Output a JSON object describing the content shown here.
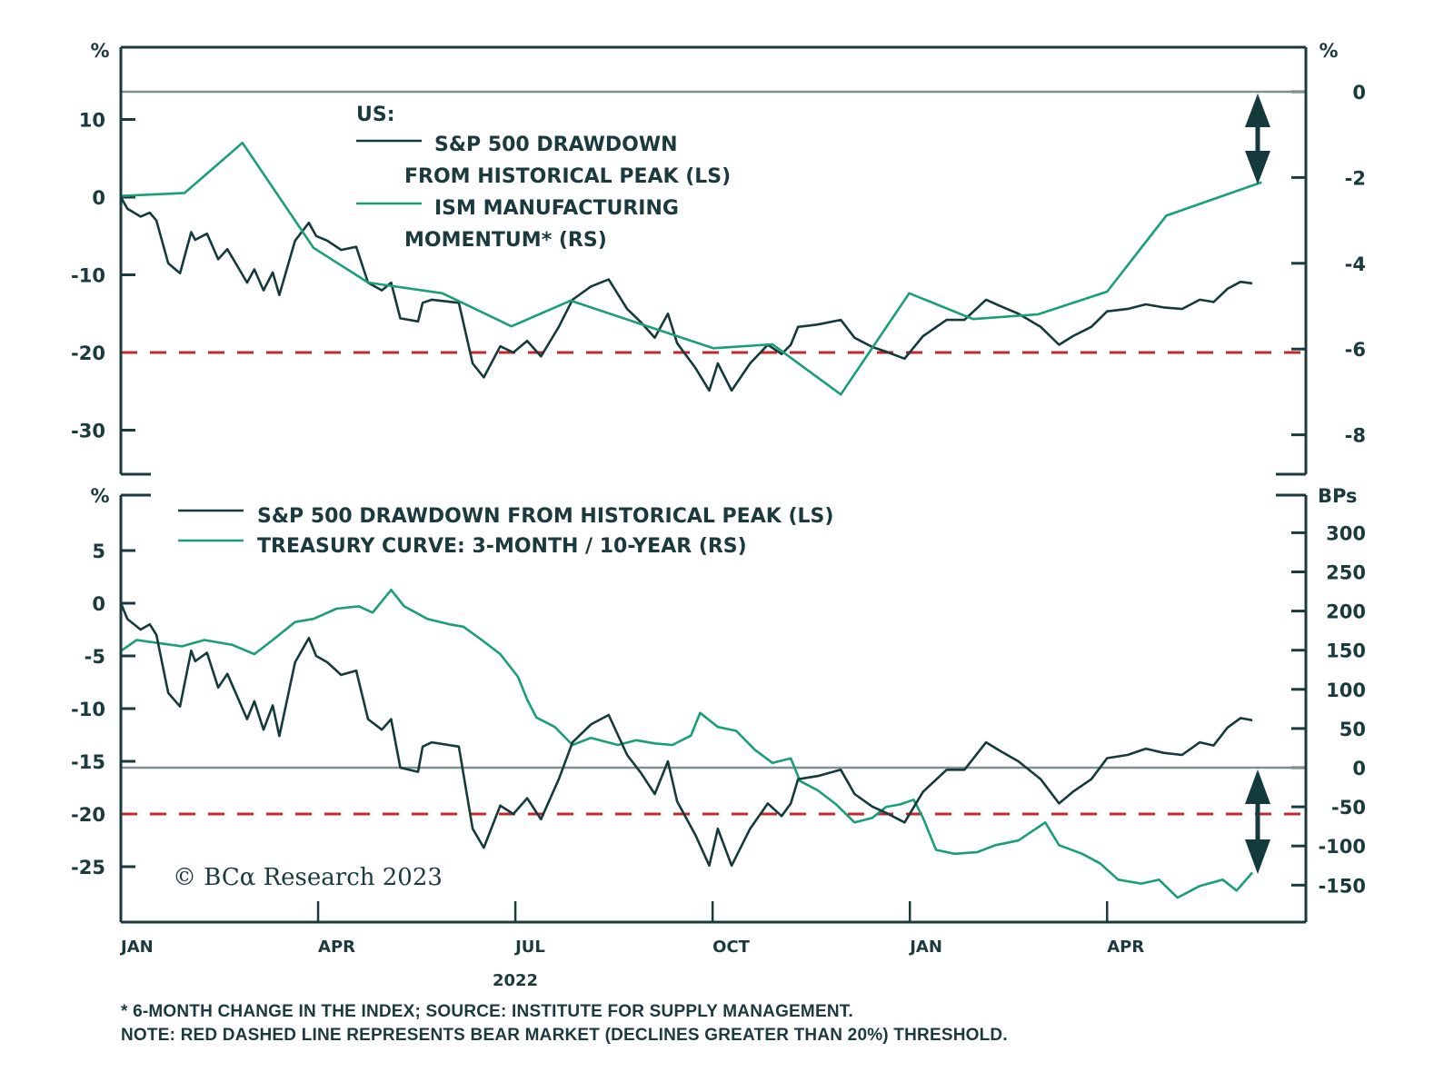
{
  "chart_data": [
    {
      "type": "line",
      "panel": "top",
      "legend_title": "US:",
      "left_unit": "%",
      "right_unit": "%",
      "left_axis": {
        "ylim": [
          -35,
          13
        ],
        "ticks": [
          10,
          0,
          -10,
          -20,
          -30
        ]
      },
      "right_axis": {
        "ylim": [
          -9.1,
          1.0
        ],
        "ticks": [
          0,
          -2,
          -4,
          -6,
          -8
        ]
      },
      "x_unit": "months since Jan 2022",
      "xlim": [
        0,
        18
      ],
      "reference_lines": [
        {
          "name": "bear-market-threshold",
          "axis": "left",
          "value": -20,
          "style": "dashed",
          "color": "#c0282d"
        },
        {
          "name": "zero-line",
          "axis": "right",
          "value": 0,
          "style": "solid",
          "color": "#7f8f8f"
        }
      ],
      "series": [
        {
          "name": "S&P 500 DRAWDOWN FROM HISTORICAL PEAK (LS)",
          "legend_lines": [
            "S&P 500 DRAWDOWN",
            "FROM HISTORICAL PEAK (LS)"
          ],
          "axis": "left",
          "color": "#153a3c",
          "x": [
            0,
            0.1,
            0.3,
            0.44,
            0.54,
            0.72,
            0.9,
            1.07,
            1.13,
            1.31,
            1.48,
            1.62,
            1.78,
            1.92,
            2.03,
            2.17,
            2.31,
            2.41,
            2.65,
            2.86,
            2.97,
            3.14,
            3.35,
            3.58,
            3.76,
            3.97,
            4.11,
            4.25,
            4.52,
            4.59,
            4.73,
            5.14,
            5.35,
            5.52,
            5.77,
            5.97,
            6.18,
            6.39,
            6.66,
            6.87,
            7.15,
            7.42,
            7.7,
            7.91,
            8.12,
            8.32,
            8.46,
            8.74,
            8.95,
            9.08,
            9.29,
            9.57,
            9.84,
            10.05,
            10.19,
            10.3,
            10.6,
            10.95,
            11.16,
            11.43,
            11.64,
            11.92,
            12.2,
            12.56,
            12.83,
            13.16,
            13.37,
            13.65,
            13.99,
            14.27,
            14.48,
            14.76,
            15.0,
            15.31,
            15.59,
            15.86,
            16.14,
            16.41,
            16.62,
            16.83,
            17.03,
            17.21
          ],
          "values": [
            0,
            -1.5,
            -2.5,
            -2.0,
            -3.0,
            -8.5,
            -9.8,
            -4.5,
            -5.5,
            -4.7,
            -8.0,
            -6.7,
            -9.0,
            -11.0,
            -9.3,
            -12.0,
            -9.7,
            -12.6,
            -5.6,
            -3.3,
            -5.0,
            -5.6,
            -6.8,
            -6.4,
            -11.0,
            -12.0,
            -11.0,
            -15.6,
            -16.0,
            -13.6,
            -13.2,
            -13.6,
            -21.4,
            -23.2,
            -19.2,
            -20.0,
            -18.5,
            -20.5,
            -16.7,
            -13.2,
            -11.5,
            -10.6,
            -14.4,
            -16.1,
            -18.1,
            -15.0,
            -18.8,
            -22.0,
            -24.9,
            -21.4,
            -24.9,
            -21.4,
            -19.0,
            -20.2,
            -19.0,
            -16.7,
            -16.4,
            -15.8,
            -18.1,
            -19.3,
            -19.9,
            -20.8,
            -17.9,
            -15.8,
            -15.8,
            -13.2,
            -14.0,
            -15.0,
            -16.7,
            -19.0,
            -17.9,
            -16.7,
            -14.7,
            -14.4,
            -13.8,
            -14.2,
            -14.4,
            -13.2,
            -13.5,
            -11.8,
            -10.9,
            -11.1
          ]
        },
        {
          "name": "ISM MANUFACTURING MOMENTUM* (RS)",
          "legend_lines": [
            "ISM MANUFACTURING",
            "MOMENTUM* (RS)"
          ],
          "axis": "right",
          "color": "#1a9e78",
          "x": [
            0,
            0.97,
            1.85,
            2.93,
            3.76,
            4.89,
            5.94,
            6.84,
            9.01,
            9.91,
            10.95,
            11.99,
            12.96,
            13.95,
            15.0,
            15.9,
            17.35
          ],
          "values": [
            -2.43,
            -2.36,
            -1.19,
            -3.64,
            -4.45,
            -4.7,
            -5.47,
            -4.87,
            -5.98,
            -5.89,
            -7.06,
            -4.7,
            -5.3,
            -5.19,
            -4.66,
            -2.89,
            -2.11
          ]
        }
      ],
      "annotation": "double-headed arrow from 0 down to about -2 on the right axis"
    },
    {
      "type": "line",
      "panel": "bottom",
      "left_unit": "%",
      "right_unit": "BPs",
      "left_axis": {
        "ylim": [
          -29.5,
          9.5
        ],
        "ticks": [
          5,
          0,
          -5,
          -10,
          -15,
          -20,
          -25
        ]
      },
      "right_axis": {
        "ylim": [
          -197,
          337
        ],
        "ticks": [
          300,
          250,
          200,
          150,
          100,
          50,
          0,
          -50,
          -100,
          -150
        ]
      },
      "x_unit": "months since Jan 2022",
      "xlim": [
        0,
        18
      ],
      "reference_lines": [
        {
          "name": "bear-market-threshold",
          "axis": "left",
          "value": -20,
          "style": "dashed",
          "color": "#c0282d"
        },
        {
          "name": "zero-line",
          "axis": "right",
          "value": 0,
          "style": "solid",
          "color": "#7f8f8f"
        }
      ],
      "series": [
        {
          "name": "S&P 500 DRAWDOWN FROM HISTORICAL PEAK (LS)",
          "axis": "left",
          "color": "#153a3c",
          "same_as": "top.S&P 500 DRAWDOWN FROM HISTORICAL PEAK (LS)"
        },
        {
          "name": "TREASURY CURVE: 3-MONTH / 10-YEAR (RS)",
          "axis": "right",
          "color": "#1a9e78",
          "x": [
            0,
            0.24,
            0.58,
            0.93,
            1.27,
            1.69,
            2.03,
            2.31,
            2.65,
            2.93,
            3.28,
            3.62,
            3.83,
            4.11,
            4.31,
            4.66,
            5.0,
            5.21,
            5.49,
            5.77,
            6.04,
            6.18,
            6.32,
            6.6,
            6.87,
            7.15,
            7.56,
            7.84,
            8.12,
            8.39,
            8.67,
            8.81,
            9.08,
            9.36,
            9.64,
            9.91,
            10.19,
            10.33,
            10.6,
            10.88,
            11.16,
            11.43,
            11.64,
            11.85,
            12.06,
            12.2,
            12.4,
            12.68,
            13.02,
            13.3,
            13.65,
            14.06,
            14.27,
            14.62,
            14.89,
            15.17,
            15.52,
            15.79,
            16.07,
            16.41,
            16.76,
            16.97,
            17.21
          ],
          "values": [
            149,
            163,
            159,
            155,
            163,
            157,
            145,
            163,
            186,
            190,
            203,
            206,
            198,
            227,
            206,
            190,
            183,
            180,
            163,
            145,
            116,
            87,
            64,
            52,
            29,
            38,
            29,
            35,
            31,
            29,
            41,
            70,
            52,
            47,
            23,
            6,
            12,
            -17,
            -29,
            -47,
            -70,
            -64,
            -50,
            -47,
            -41,
            -64,
            -105,
            -110,
            -108,
            -99,
            -93,
            -70,
            -99,
            -110,
            -122,
            -143,
            -148,
            -143,
            -166,
            -151,
            -143,
            -157,
            -134
          ]
        }
      ],
      "annotation": "double-headed arrow from 0 down to about -140 on the right axis"
    }
  ],
  "legends": {
    "top": {
      "title": "US:",
      "sp_line1": "S&P 500 DRAWDOWN",
      "sp_line2": "FROM HISTORICAL PEAK (LS)",
      "ism_line1": "ISM MANUFACTURING",
      "ism_line2": "MOMENTUM* (RS)"
    },
    "bottom": {
      "sp": "S&P 500 DRAWDOWN FROM HISTORICAL PEAK (LS)",
      "treasury": "TREASURY CURVE: 3-MONTH / 10-YEAR (RS)"
    }
  },
  "axes": {
    "top_left_unit": "%",
    "top_right_unit": "%",
    "bottom_left_unit": "%",
    "bottom_right_unit": "BPs",
    "top_left_ticks": [
      "10",
      "0",
      "-10",
      "-20",
      "-30"
    ],
    "top_right_ticks": [
      "0",
      "-2",
      "-4",
      "-6",
      "-8"
    ],
    "bottom_left_ticks": [
      "5",
      "0",
      "-5",
      "-10",
      "-15",
      "-20",
      "-25"
    ],
    "bottom_right_ticks": [
      "300",
      "250",
      "200",
      "150",
      "100",
      "50",
      "0",
      "-50",
      "-100",
      "-150"
    ],
    "x_ticks": [
      "JAN",
      "APR",
      "JUL",
      "OCT",
      "JAN",
      "APR"
    ],
    "x_tick_months": [
      0,
      3,
      6,
      9,
      12,
      15
    ],
    "year_label": "2022"
  },
  "copyright": "© BCα Research 2023",
  "footnotes": {
    "line1": "* 6-MONTH CHANGE IN THE INDEX; SOURCE: INSTITUTE FOR SUPPLY MANAGEMENT.",
    "line2": "NOTE: RED DASHED LINE REPRESENTS BEAR MARKET (DECLINES GREATER THAN 20%) THRESHOLD."
  },
  "colors": {
    "axis": "#1b3a3e",
    "sp500": "#153a3c",
    "green": "#1a9e78",
    "bear_dash": "#c0282d",
    "zero_line": "#7f8f8f"
  }
}
